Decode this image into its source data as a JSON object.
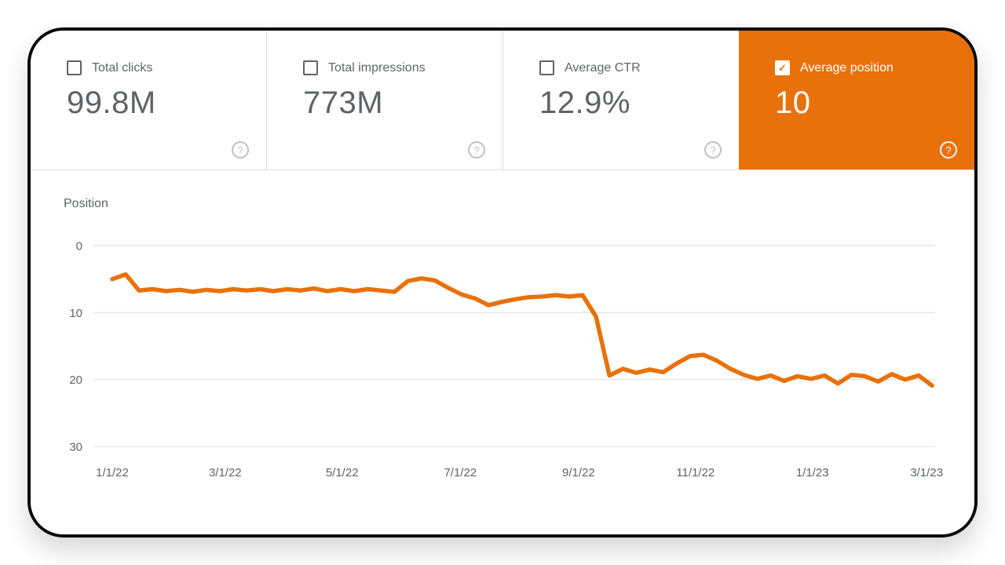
{
  "colors": {
    "accent": "#e8710a",
    "text_gray": "#5f6368",
    "grid_line": "#dadce0",
    "icon_gray": "#bdc1c6"
  },
  "metrics": {
    "help_glyph": "?",
    "cards": [
      {
        "label": "Total clicks",
        "value": "99.8M",
        "checked": false,
        "selected": false,
        "check_glyph": ""
      },
      {
        "label": "Total impressions",
        "value": "773M",
        "checked": false,
        "selected": false,
        "check_glyph": ""
      },
      {
        "label": "Average CTR",
        "value": "12.9%",
        "checked": false,
        "selected": false,
        "check_glyph": ""
      },
      {
        "label": "Average position",
        "value": "10",
        "checked": true,
        "selected": true,
        "check_glyph": "✓"
      }
    ]
  },
  "chart_data": {
    "type": "line",
    "title": "Position",
    "ylabel": "Position",
    "xlabel": "",
    "y_ticks": [
      0,
      10,
      20,
      30
    ],
    "ylim": [
      0,
      30
    ],
    "y_axis_inverted": true,
    "grid": true,
    "legend": "none",
    "x_start_date": "1/1/22",
    "x_interval": "weekly",
    "x_total_weeks": 61,
    "x_ticks": [
      {
        "label": "1/1/22",
        "week": 0
      },
      {
        "label": "3/1/22",
        "week": 8.4
      },
      {
        "label": "5/1/22",
        "week": 17.1
      },
      {
        "label": "7/1/22",
        "week": 25.9
      },
      {
        "label": "9/1/22",
        "week": 34.7
      },
      {
        "label": "11/1/22",
        "week": 43.4
      },
      {
        "label": "1/1/23",
        "week": 52.1
      },
      {
        "label": "3/1/23",
        "week": 60.6
      }
    ],
    "series": [
      {
        "name": "Average position",
        "color": "#e8710a",
        "values": [
          5.0,
          4.3,
          6.7,
          6.5,
          6.8,
          6.6,
          6.9,
          6.6,
          6.8,
          6.5,
          6.7,
          6.5,
          6.8,
          6.5,
          6.7,
          6.4,
          6.8,
          6.5,
          6.8,
          6.5,
          6.7,
          6.9,
          5.3,
          4.9,
          5.2,
          6.3,
          7.3,
          7.9,
          8.9,
          8.4,
          8.0,
          7.7,
          7.6,
          7.4,
          7.6,
          7.4,
          10.6,
          19.4,
          18.4,
          19.0,
          18.5,
          18.9,
          17.6,
          16.5,
          16.3,
          17.2,
          18.4,
          19.3,
          19.9,
          19.4,
          20.2,
          19.5,
          19.9,
          19.4,
          20.6,
          19.3,
          19.5,
          20.3,
          19.2,
          20.0,
          19.4,
          20.9
        ]
      }
    ]
  }
}
